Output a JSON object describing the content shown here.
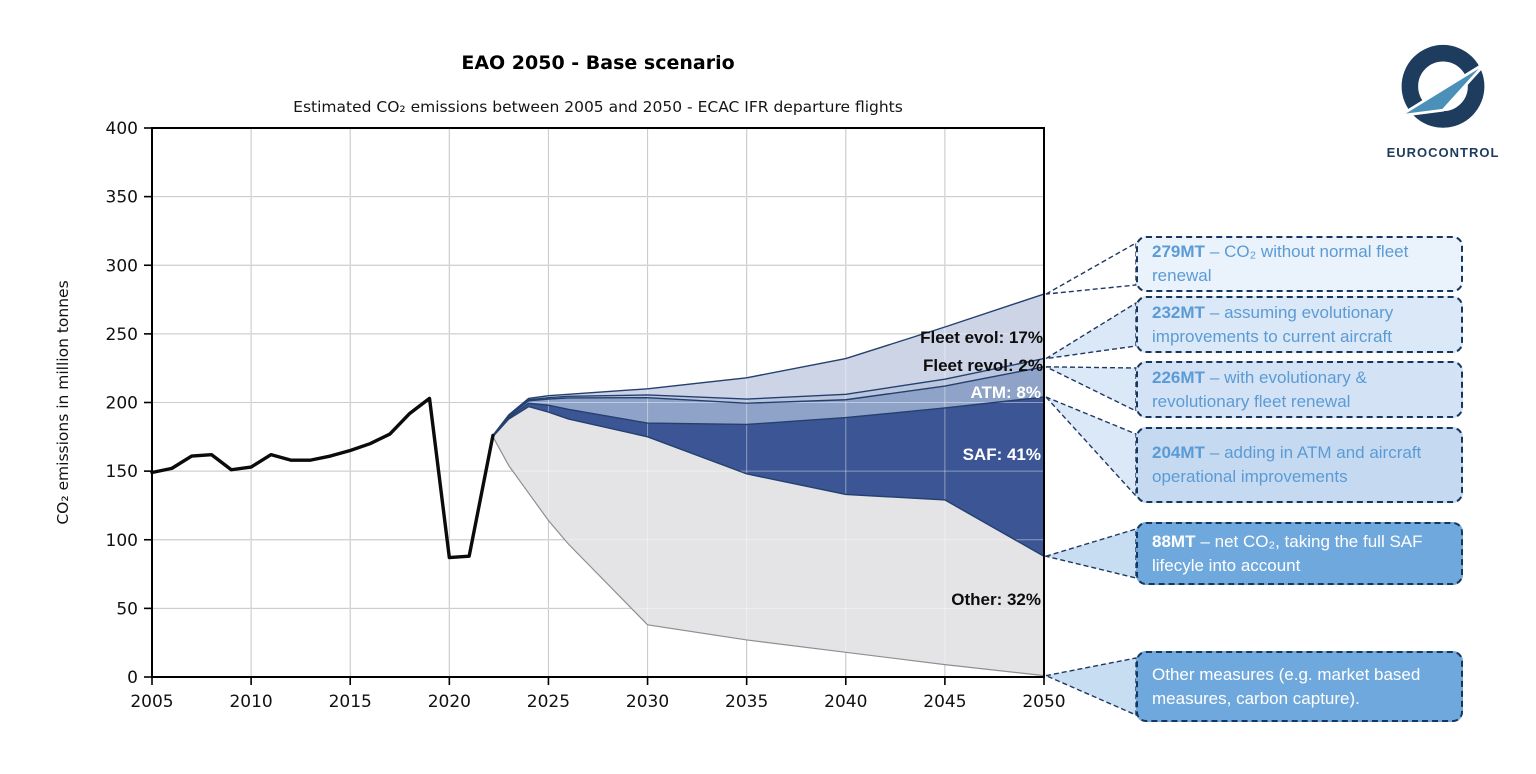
{
  "page": {
    "title": "EAO 2050 - Base scenario",
    "subtitle": "Estimated CO₂ emissions between 2005 and 2050 - ECAC IFR departure flights"
  },
  "logo": {
    "wordmark": "EUROCONTROL",
    "navy": "#1d3c5e",
    "accent": "#4a90b8"
  },
  "styles": {
    "callout_border": "#17365d",
    "connector": "#1f3864",
    "plot_border": "#000000",
    "gridline": "#a6a6aa"
  },
  "chart_data": {
    "type": "area",
    "title": "EAO 2050 - Base scenario",
    "subtitle": "Estimated CO₂ emissions between 2005 and 2050 - ECAC IFR departure flights",
    "xlabel": "",
    "ylabel": "CO₂ emissions in million tonnes",
    "xlim": [
      2005,
      2050
    ],
    "ylim": [
      0,
      400
    ],
    "xticks": [
      2005,
      2010,
      2015,
      2020,
      2025,
      2030,
      2035,
      2040,
      2045,
      2050
    ],
    "yticks": [
      0,
      50,
      100,
      150,
      200,
      250,
      300,
      350,
      400
    ],
    "grid": true,
    "legend": "none",
    "historical": {
      "name": "historical-co2-emissions",
      "color": "#0b0b0b",
      "x": [
        2005,
        2006,
        2007,
        2008,
        2009,
        2010,
        2011,
        2012,
        2013,
        2014,
        2015,
        2016,
        2017,
        2018,
        2019,
        2020,
        2021,
        2022.2
      ],
      "y": [
        149,
        152,
        161,
        162,
        151,
        153,
        162,
        158,
        158,
        161,
        165,
        170,
        177,
        192,
        203,
        87,
        88,
        176
      ]
    },
    "scenario_years": [
      2022.2,
      2023,
      2024,
      2025,
      2026,
      2030,
      2035,
      2040,
      2045,
      2050
    ],
    "trajectories": [
      {
        "name": "co2-without-normal-fleet-renewal",
        "end_value": 279,
        "line_color": "#24406f",
        "values": [
          176,
          191,
          203,
          205,
          206,
          210,
          218,
          232,
          255,
          279
        ]
      },
      {
        "name": "evolutionary-improvements",
        "end_value": 232,
        "line_color": "#24406f",
        "values": [
          176,
          190.5,
          202,
          203.5,
          204.5,
          205.5,
          202.5,
          206,
          217,
          232
        ]
      },
      {
        "name": "evolutionary-and-revolutionary",
        "end_value": 226,
        "line_color": "#24406f",
        "values": [
          175.8,
          190,
          201.2,
          202.5,
          203.3,
          203.5,
          199.5,
          202,
          212,
          226
        ]
      },
      {
        "name": "plus-atm-and-operations",
        "end_value": 204,
        "line_color": "#24406f",
        "values": [
          175.5,
          189,
          199.5,
          198,
          195,
          185,
          184,
          189,
          196,
          204
        ]
      },
      {
        "name": "net-with-saf",
        "end_value": 88,
        "line_color": "#24406f",
        "values": [
          175.2,
          188,
          197,
          193,
          188,
          175,
          148,
          133,
          129,
          88
        ]
      },
      {
        "name": "with-other-measures",
        "end_value": 1,
        "line_color": "#8f8f92",
        "values": [
          175,
          154,
          134,
          114,
          97,
          38,
          27,
          18,
          9,
          1
        ]
      }
    ],
    "bands": [
      {
        "name": "fleet-evol",
        "label": "Fleet evol: 17%",
        "color": "#cdd4e6",
        "label_color": "#0d0d0d"
      },
      {
        "name": "fleet-revol",
        "label": "Fleet revol: 2%",
        "color": "#bac6de",
        "label_color": "#0d0d0d"
      },
      {
        "name": "atm",
        "label": "ATM: 8%",
        "color": "#8ea3c7",
        "label_color": "#ffffff"
      },
      {
        "name": "saf",
        "label": "SAF: 41%",
        "color": "#3c5594",
        "label_color": "#ffffff"
      },
      {
        "name": "other",
        "label": "Other: 32%",
        "color": "#e4e4e7",
        "label_color": "#0d0d0d"
      }
    ]
  },
  "callouts": [
    {
      "value": "279MT",
      "text": "– CO₂ without normal fleet renewal",
      "fill": "#eaf2fb",
      "text_color": "#5b9bd5",
      "connector_fill": "none"
    },
    {
      "value": "232MT",
      "text": "– assuming evolutionary improvements to current aircraft",
      "fill": "#dbe8f7",
      "text_color": "#5b9bd5",
      "connector_fill": "#d4e4f6"
    },
    {
      "value": "226MT",
      "text": "– with evolutionary & revolutionary fleet renewal",
      "fill": "#d3e3f5",
      "text_color": "#5b9bd5",
      "connector_fill": "#d4e4f6"
    },
    {
      "value": "204MT",
      "text": "– adding in ATM and aircraft operational improvements",
      "fill": "#c5daf1",
      "text_color": "#5b9bd5",
      "connector_fill": "#d4e4f6"
    },
    {
      "value": "88MT",
      "text": "– net CO₂, taking the full SAF lifecyle into account",
      "fill": "#6fa8dc",
      "text_color": "#ffffff",
      "connector_fill": "#bdd7ee"
    },
    {
      "value": "",
      "text": "Other measures (e.g. market based measures, carbon capture).",
      "fill": "#6fa8dc",
      "text_color": "#ffffff",
      "connector_fill": "#bdd7ee"
    }
  ]
}
